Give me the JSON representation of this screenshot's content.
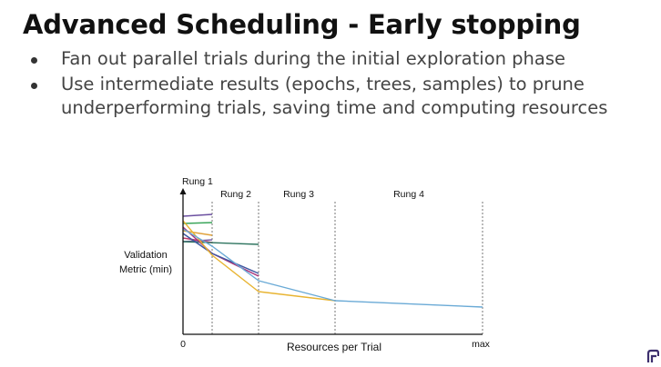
{
  "slide": {
    "title": "Advanced Scheduling - Early stopping",
    "bullets": [
      "Fan out parallel trials during the initial exploration phase",
      "Use intermediate results (epochs, trees, samples) to prune underperforming trials, saving time and computing resources"
    ]
  },
  "diagram": {
    "y_axis_label_line1": "Validation",
    "y_axis_label_line2": "Metric (min)",
    "x_axis_label": "Resources per Trial",
    "origin_label": "0",
    "max_label": "max",
    "rungs": [
      "Rung 1",
      "Rung 2",
      "Rung 3",
      "Rung 4"
    ]
  },
  "logo": {
    "icon": "brand-logo-icon"
  }
}
